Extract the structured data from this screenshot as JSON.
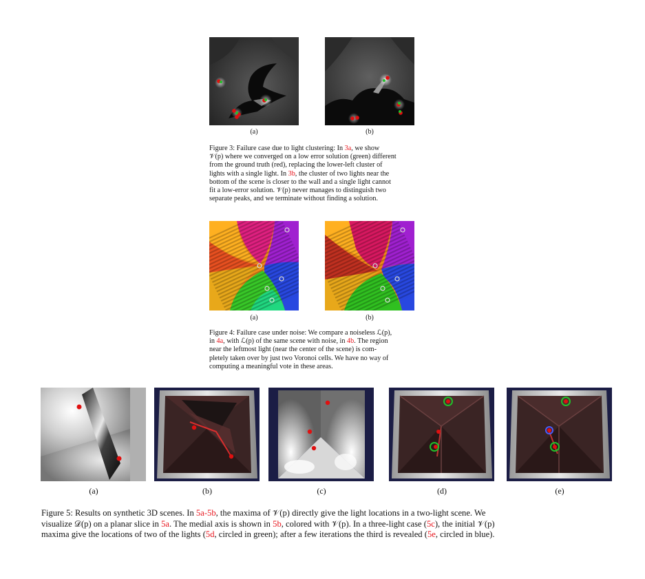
{
  "figure3": {
    "sub_a": "(a)",
    "sub_b": "(b)",
    "caption": {
      "l1": [
        "Figure 3: Failure case due to light clustering: In ",
        "3a",
        ", we show"
      ],
      "l2": [
        "𝒱(p) where we converged on a low error solution (green) different"
      ],
      "l3": [
        "from the ground truth (red), replacing the lower-left cluster of"
      ],
      "l4": [
        "lights with a single light. In ",
        "3b",
        ", the cluster of two lights near the"
      ],
      "l5": [
        "bottom of the scene is closer to the wall and a single light cannot"
      ],
      "l6": [
        "fit a low-error solution. 𝒱(p) never manages to distinguish two"
      ],
      "l7": [
        "separate peaks, and we terminate without finding a solution."
      ]
    }
  },
  "figure4": {
    "sub_a": "(a)",
    "sub_b": "(b)",
    "caption": {
      "l1": [
        "Figure 4: Failure case under noise: We compare a noiseless ℒ(p),"
      ],
      "l2": [
        "in ",
        "4a",
        ", with ℒ(p) of the same scene with noise, in ",
        "4b",
        ". The region"
      ],
      "l3": [
        "near the leftmost light (near the center of the scene) is com-"
      ],
      "l4": [
        "pletely taken over by just two Voronoi cells. We have no way of"
      ],
      "l5": [
        "computing a meaningful vote in these areas."
      ]
    }
  },
  "figure5": {
    "subs": [
      "(a)",
      "(b)",
      "(c)",
      "(d)",
      "(e)"
    ],
    "caption": {
      "l1": [
        "Figure 5: Results on synthetic 3D scenes. In ",
        "5a",
        "-",
        "5b",
        ", the maxima of 𝒱(p) directly give the light locations in a two-light scene. We"
      ],
      "l2": [
        "visualize 𝒟(p) on a planar slice in ",
        "5a",
        ". The medial axis is shown in ",
        "5b",
        ", colored with 𝒱(p). In a three-light case (",
        "5c",
        "), the initial 𝒱(p)"
      ],
      "l3": [
        "maxima give the locations of two of the lights (",
        "5d",
        ", circled in green); after a few iterations the third is revealed (",
        "5e",
        ", circled in blue)."
      ]
    }
  },
  "colors": {
    "ref": "#e8141c",
    "truth": "#e01010",
    "estimate": "#22c02a",
    "highlight": "#4a5cff",
    "scene_bg": "#1b1d45"
  }
}
